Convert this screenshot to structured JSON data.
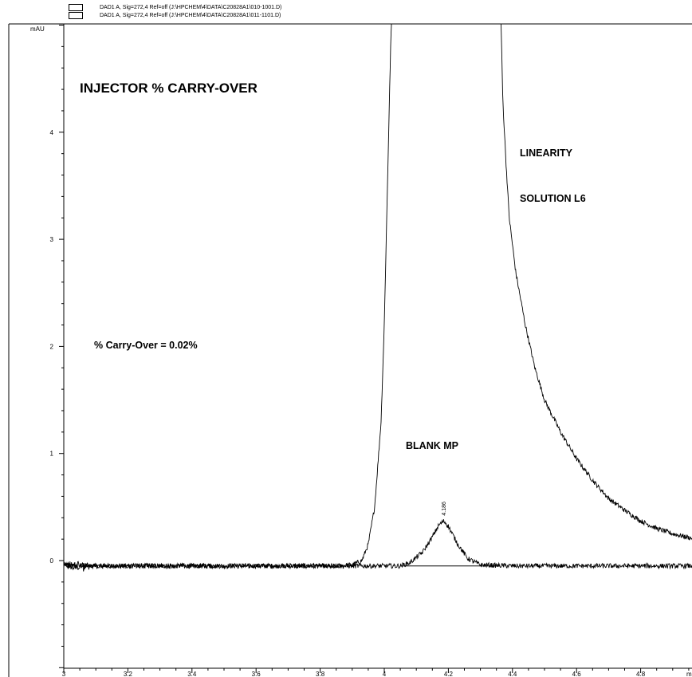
{
  "legend": [
    {
      "label": "DAD1 A, Sig=272,4 Ref=off (J:\\HPCHEM\\4\\DATA\\C20828A1\\010-1001.D)"
    },
    {
      "label": "DAD1 A, Sig=272,4 Ref=off (J:\\HPCHEM\\4\\DATA\\C20828A1\\011-1101.D)"
    }
  ],
  "annotations": {
    "title": "INJECTOR % CARRY-OVER",
    "linearity_line1": "LINEARITY",
    "linearity_line2": "SOLUTION L6",
    "carry_over": "% Carry-Over = 0.02%",
    "blank": "BLANK MP",
    "peak_label": "4.186"
  },
  "chart_data": {
    "type": "line",
    "ylabel": "mAU",
    "xlabel": "m",
    "xlim": [
      3.0,
      5.0
    ],
    "ylim": [
      -1.0,
      5.0
    ],
    "x_ticks": [
      3,
      3.2,
      3.4,
      3.6,
      3.8,
      4,
      4.2,
      4.4,
      4.6,
      4.8
    ],
    "y_ticks": [
      0,
      1,
      2,
      3,
      4
    ],
    "grid": false,
    "series": [
      {
        "file": "010-1001.D",
        "x": [
          3.0,
          3.5,
          3.85,
          3.9,
          3.93,
          3.95,
          3.97,
          3.99,
          4.0,
          4.01,
          4.02,
          4.03,
          4.36,
          4.37,
          4.38,
          4.39,
          4.41,
          4.44,
          4.47,
          4.5,
          4.55,
          4.6,
          4.65,
          4.7,
          4.75,
          4.8,
          4.85,
          4.9,
          5.0
        ],
        "y": [
          -0.05,
          -0.05,
          -0.05,
          -0.04,
          0.0,
          0.15,
          0.5,
          1.3,
          2.2,
          3.5,
          4.8,
          5.6,
          5.6,
          4.3,
          3.7,
          3.2,
          2.7,
          2.2,
          1.8,
          1.5,
          1.2,
          0.95,
          0.75,
          0.58,
          0.47,
          0.37,
          0.3,
          0.25,
          0.18
        ]
      },
      {
        "file": "011-1101.D",
        "x": [
          3.0,
          3.5,
          4.05,
          4.08,
          4.12,
          4.15,
          4.17,
          4.186,
          4.2,
          4.23,
          4.26,
          4.3,
          4.4,
          4.7,
          5.0
        ],
        "y": [
          -0.05,
          -0.05,
          -0.05,
          -0.02,
          0.08,
          0.22,
          0.33,
          0.37,
          0.32,
          0.15,
          0.02,
          -0.04,
          -0.05,
          -0.05,
          -0.05
        ]
      }
    ],
    "peak": {
      "x": 4.186,
      "label": "4.186",
      "baseline": [
        4.05,
        4.36
      ]
    }
  }
}
